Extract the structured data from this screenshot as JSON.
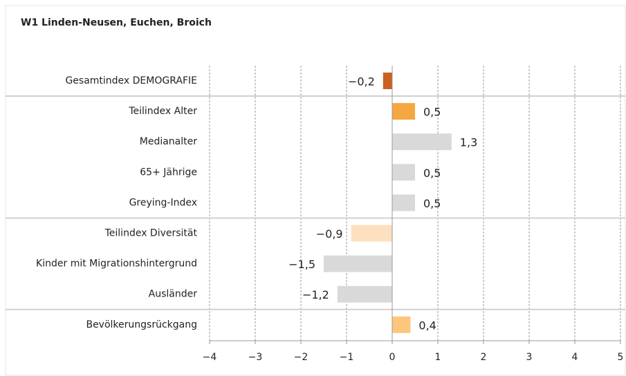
{
  "chart_data": {
    "type": "hbar",
    "title": "W1 Linden-Neusen, Euchen, Broich",
    "categories": [
      "Gesamtindex DEMOGRAFIE",
      "Teilindex Alter",
      "Medianalter",
      "65+ Jährige",
      "Greying-Index",
      "Teilindex Diversität",
      "Kinder mit Migrationshintergrund",
      "Ausländer",
      "Bevölkerungsrückgang"
    ],
    "values": [
      -0.2,
      0.5,
      1.3,
      0.5,
      0.5,
      -0.9,
      -1.5,
      -1.2,
      0.4
    ],
    "value_labels": [
      "−0,2",
      "0,5",
      "1,3",
      "0,5",
      "0,5",
      "−0,9",
      "−1,5",
      "−1,2",
      "0,4"
    ],
    "colors": [
      "#c9601f",
      "#f5a742",
      "#d9d9d9",
      "#d9d9d9",
      "#d9d9d9",
      "#fde0bf",
      "#d9d9d9",
      "#d9d9d9",
      "#fcc77c"
    ],
    "xlim": [
      -4,
      5
    ],
    "xticks": [
      {
        "value": -4,
        "label": "−4"
      },
      {
        "value": -3,
        "label": "−3"
      },
      {
        "value": -2,
        "label": "−2"
      },
      {
        "value": -1,
        "label": "−1"
      },
      0,
      1,
      2,
      3,
      4,
      5
    ],
    "grid": true
  }
}
